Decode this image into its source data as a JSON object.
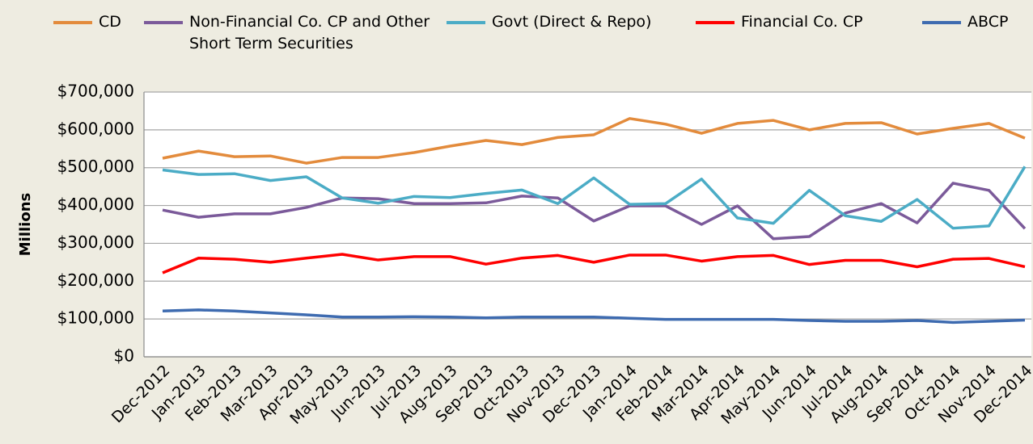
{
  "chart_data": {
    "type": "line",
    "y_label": "Millions",
    "categories": [
      "Dec-2012",
      "Jan-2013",
      "Feb-2013",
      "Mar-2013",
      "Apr-2013",
      "May-2013",
      "Jun-2013",
      "Jul-2013",
      "Aug-2013",
      "Sep-2013",
      "Oct-2013",
      "Nov-2013",
      "Dec-2013",
      "Jan-2014",
      "Feb-2014",
      "Mar-2014",
      "Apr-2014",
      "May-2014",
      "Jun-2014",
      "Jul-2014",
      "Aug-2014",
      "Sep-2014",
      "Oct-2014",
      "Nov-2014",
      "Dec-2014"
    ],
    "series": [
      {
        "name": "CD",
        "color": "#e38b3c",
        "values": [
          525000,
          544000,
          529000,
          531000,
          512000,
          527000,
          527000,
          540000,
          557000,
          572000,
          561000,
          580000,
          587000,
          630000,
          615000,
          591000,
          617000,
          625000,
          600000,
          617000,
          619000,
          589000,
          604000,
          617000,
          578000
        ]
      },
      {
        "name": "Non-Financial Co. CP and Other Short Term Securities",
        "color": "#7b5a9a",
        "values": [
          388000,
          369000,
          378000,
          378000,
          395000,
          420000,
          418000,
          405000,
          405000,
          407000,
          425000,
          420000,
          359000,
          399000,
          399000,
          350000,
          399000,
          312000,
          318000,
          380000,
          405000,
          354000,
          459000,
          440000,
          339000
        ]
      },
      {
        "name": "Govt (Direct & Repo)",
        "color": "#4bacc6",
        "values": [
          494000,
          482000,
          484000,
          466000,
          476000,
          420000,
          406000,
          424000,
          421000,
          432000,
          441000,
          405000,
          473000,
          403000,
          405000,
          470000,
          367000,
          353000,
          440000,
          373000,
          358000,
          416000,
          340000,
          346000,
          503000
        ]
      },
      {
        "name": "Financial Co. CP",
        "color": "#ff0000",
        "values": [
          222000,
          261000,
          258000,
          250000,
          261000,
          271000,
          256000,
          265000,
          265000,
          245000,
          261000,
          268000,
          250000,
          269000,
          269000,
          253000,
          265000,
          268000,
          244000,
          255000,
          255000,
          238000,
          258000,
          260000,
          238000
        ]
      },
      {
        "name": "ABCP",
        "color": "#3e6bb0",
        "values": [
          121000,
          124000,
          121000,
          116000,
          111000,
          105000,
          105000,
          106000,
          105000,
          103000,
          105000,
          105000,
          105000,
          102000,
          99000,
          99000,
          99000,
          99000,
          96000,
          94000,
          94000,
          96000,
          91000,
          94000,
          97000
        ]
      }
    ],
    "ylim": [
      0,
      700000
    ],
    "yticks": [
      {
        "value": 0,
        "label": "$0"
      },
      {
        "value": 100000,
        "label": "$100,000"
      },
      {
        "value": 200000,
        "label": "$200,000"
      },
      {
        "value": 300000,
        "label": "$300,000"
      },
      {
        "value": 400000,
        "label": "$400,000"
      },
      {
        "value": 500000,
        "label": "$500,000"
      },
      {
        "value": 600000,
        "label": "$600,000"
      },
      {
        "value": 700000,
        "label": "$700,000"
      }
    ],
    "grid": true,
    "legend": "top"
  }
}
